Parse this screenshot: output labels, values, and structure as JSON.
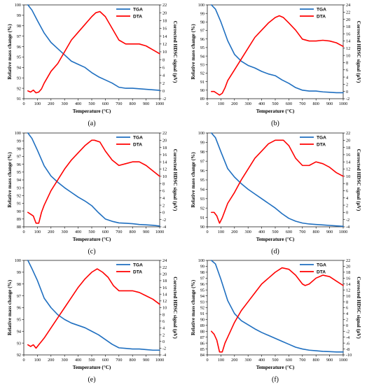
{
  "colors": {
    "tga": "#1F6FC0",
    "dta": "#FF0000",
    "axis": "#000000"
  },
  "chart_data": [
    {
      "type": "line",
      "caption": "(a)",
      "xlabel": "Temperature (°C)",
      "ylabel": "Relative mass change (%)",
      "y2label": "Corrected HDSC signal (µV)",
      "legend_position": "top-right",
      "xlim": [
        0,
        1000
      ],
      "xticks": [
        0,
        100,
        200,
        300,
        400,
        500,
        600,
        700,
        800,
        900,
        1000
      ],
      "ylim": [
        91,
        100
      ],
      "yticks": [
        91,
        92,
        93,
        94,
        95,
        96,
        97,
        98,
        99,
        100
      ],
      "y2lim": [
        -2,
        22
      ],
      "y2ticks": [
        -2,
        0,
        2,
        4,
        6,
        8,
        10,
        12,
        14,
        16,
        18,
        20,
        22
      ],
      "series": [
        {
          "name": "TGA",
          "axis": "left",
          "x": [
            30,
            60,
            100,
            150,
            200,
            250,
            300,
            350,
            400,
            450,
            500,
            550,
            600,
            650,
            700,
            750,
            800,
            850,
            900,
            950,
            1000
          ],
          "y": [
            100,
            99.5,
            98.5,
            97.3,
            96.4,
            95.8,
            95.2,
            94.6,
            94.3,
            94.0,
            93.5,
            93.1,
            92.8,
            92.5,
            92.1,
            92.0,
            92.0,
            91.95,
            91.9,
            91.85,
            91.8
          ]
        },
        {
          "name": "DTA",
          "axis": "right",
          "x": [
            30,
            50,
            70,
            90,
            110,
            130,
            150,
            200,
            250,
            300,
            350,
            400,
            450,
            500,
            530,
            560,
            600,
            650,
            700,
            750,
            800,
            850,
            900,
            950,
            1000
          ],
          "y": [
            0,
            -0.3,
            0.2,
            -0.5,
            -0.3,
            0.5,
            2,
            5,
            7,
            10,
            13,
            15,
            17,
            19,
            20,
            20.3,
            19,
            16,
            13,
            12,
            12,
            12,
            11.5,
            10.5,
            9.5
          ]
        }
      ]
    },
    {
      "type": "line",
      "caption": "(b)",
      "xlabel": "Temperature (°C)",
      "ylabel": "Relative mass change (%)",
      "y2label": "Corrected HDSC signal (µV)",
      "legend_position": "top-right",
      "xlim": [
        0,
        1000
      ],
      "xticks": [
        0,
        100,
        200,
        300,
        400,
        500,
        600,
        700,
        800,
        900,
        1000
      ],
      "ylim": [
        89,
        100
      ],
      "yticks": [
        89,
        90,
        91,
        92,
        93,
        94,
        95,
        96,
        97,
        98,
        99,
        100
      ],
      "y2lim": [
        -2,
        24
      ],
      "y2ticks": [
        -2,
        0,
        2,
        4,
        6,
        8,
        10,
        12,
        14,
        16,
        18,
        20,
        22,
        24
      ],
      "series": [
        {
          "name": "TGA",
          "axis": "left",
          "x": [
            30,
            60,
            100,
            150,
            200,
            250,
            300,
            350,
            400,
            450,
            500,
            550,
            600,
            650,
            700,
            750,
            800,
            850,
            900,
            950,
            1000
          ],
          "y": [
            100,
            99.5,
            98,
            95.8,
            94.2,
            93.4,
            92.9,
            92.6,
            92.2,
            91.9,
            91.7,
            91.2,
            90.8,
            90.3,
            90.0,
            89.9,
            89.9,
            89.8,
            89.75,
            89.7,
            89.7
          ]
        },
        {
          "name": "DTA",
          "axis": "right",
          "x": [
            30,
            50,
            70,
            90,
            110,
            130,
            150,
            200,
            250,
            300,
            350,
            400,
            450,
            500,
            530,
            560,
            600,
            650,
            700,
            750,
            800,
            850,
            900,
            950,
            1000
          ],
          "y": [
            0,
            0,
            -0.5,
            -1,
            -0.5,
            1,
            3,
            6,
            9,
            12,
            15,
            17,
            19,
            20.5,
            21,
            20.5,
            19,
            17,
            14.5,
            14,
            14,
            14.2,
            14,
            13.5,
            12.5
          ]
        }
      ]
    },
    {
      "type": "line",
      "caption": "(c)",
      "xlabel": "Temperature (°C)",
      "ylabel": "Relative mass change (%)",
      "y2label": "Corrected HDSC signal (µV)",
      "legend_position": "top-right",
      "xlim": [
        0,
        1000
      ],
      "xticks": [
        0,
        100,
        200,
        300,
        400,
        500,
        600,
        700,
        800,
        900,
        1000
      ],
      "ylim": [
        88,
        100
      ],
      "yticks": [
        88,
        89,
        90,
        91,
        92,
        93,
        94,
        95,
        96,
        97,
        98,
        99,
        100
      ],
      "y2lim": [
        -4,
        22
      ],
      "y2ticks": [
        -4,
        -2,
        0,
        2,
        4,
        6,
        8,
        10,
        12,
        14,
        16,
        18,
        20,
        22
      ],
      "series": [
        {
          "name": "TGA",
          "axis": "left",
          "x": [
            30,
            60,
            100,
            150,
            200,
            250,
            300,
            350,
            400,
            450,
            500,
            550,
            600,
            650,
            700,
            750,
            800,
            850,
            900,
            950,
            1000
          ],
          "y": [
            100,
            99.3,
            97.8,
            95.8,
            94.5,
            93.7,
            93.0,
            92.4,
            91.8,
            91.3,
            90.7,
            89.8,
            89.0,
            88.7,
            88.5,
            88.45,
            88.4,
            88.3,
            88.25,
            88.2,
            88.1
          ]
        },
        {
          "name": "DTA",
          "axis": "right",
          "x": [
            30,
            50,
            70,
            90,
            110,
            130,
            150,
            200,
            250,
            300,
            350,
            400,
            450,
            500,
            520,
            560,
            600,
            650,
            700,
            750,
            800,
            850,
            900,
            950,
            1000
          ],
          "y": [
            0,
            -0.5,
            -1,
            -3,
            -3,
            0,
            2,
            6,
            9,
            12,
            14.5,
            16.5,
            18.5,
            20,
            20,
            19.5,
            17,
            14.5,
            13,
            13.5,
            14,
            14,
            13,
            11.5,
            10
          ]
        }
      ]
    },
    {
      "type": "line",
      "caption": "(d)",
      "xlabel": "Temperature (°C)",
      "ylabel": "Relative mass change (%)",
      "y2label": "Corrected HDSC signal (µV)",
      "legend_position": "top-right",
      "xlim": [
        0,
        1000
      ],
      "xticks": [
        0,
        100,
        200,
        300,
        400,
        500,
        600,
        700,
        800,
        900,
        1000
      ],
      "ylim": [
        90,
        100
      ],
      "yticks": [
        90,
        91,
        92,
        93,
        94,
        95,
        96,
        97,
        98,
        99,
        100
      ],
      "y2lim": [
        -4,
        22
      ],
      "y2ticks": [
        -4,
        -2,
        0,
        2,
        4,
        6,
        8,
        10,
        12,
        14,
        16,
        18,
        20,
        22
      ],
      "series": [
        {
          "name": "TGA",
          "axis": "left",
          "x": [
            30,
            60,
            100,
            150,
            200,
            250,
            300,
            350,
            400,
            450,
            500,
            550,
            600,
            650,
            700,
            750,
            800,
            850,
            900,
            950,
            1000
          ],
          "y": [
            100,
            99.5,
            98,
            96.2,
            95.3,
            94.6,
            94.0,
            93.5,
            93.0,
            92.5,
            92.0,
            91.4,
            90.9,
            90.6,
            90.4,
            90.3,
            90.25,
            90.2,
            90.15,
            90.1,
            90.05
          ]
        },
        {
          "name": "DTA",
          "axis": "right",
          "x": [
            30,
            50,
            70,
            90,
            110,
            130,
            150,
            200,
            250,
            300,
            350,
            400,
            450,
            500,
            530,
            560,
            600,
            650,
            700,
            750,
            800,
            850,
            900,
            950,
            1000
          ],
          "y": [
            0,
            0,
            -1,
            -3,
            -1.5,
            0.5,
            2.5,
            5.5,
            9,
            12,
            15,
            17,
            19,
            20,
            20,
            20,
            18.5,
            15,
            13,
            13,
            14,
            13.5,
            12.5,
            11,
            10
          ]
        }
      ]
    },
    {
      "type": "line",
      "caption": "(e)",
      "xlabel": "Temperature (°C)",
      "ylabel": "Relative mass change (%)",
      "y2label": "Corrected HDSC signal (µV)",
      "legend_position": "top-right",
      "xlim": [
        0,
        1000
      ],
      "xticks": [
        0,
        100,
        200,
        300,
        400,
        500,
        600,
        700,
        800,
        900,
        1000
      ],
      "ylim": [
        92,
        100
      ],
      "yticks": [
        92,
        93,
        94,
        95,
        96,
        97,
        98,
        99,
        100
      ],
      "y2lim": [
        -4,
        24
      ],
      "y2ticks": [
        -4,
        -2,
        0,
        2,
        4,
        6,
        8,
        10,
        12,
        14,
        16,
        18,
        20,
        22,
        24
      ],
      "series": [
        {
          "name": "TGA",
          "axis": "left",
          "x": [
            30,
            60,
            100,
            150,
            200,
            250,
            300,
            350,
            400,
            450,
            500,
            550,
            600,
            650,
            700,
            750,
            800,
            850,
            900,
            950,
            1000
          ],
          "y": [
            100,
            99.3,
            98.3,
            96.8,
            96.0,
            95.4,
            95.0,
            94.7,
            94.5,
            94.3,
            94.0,
            93.7,
            93.3,
            92.9,
            92.6,
            92.55,
            92.5,
            92.5,
            92.45,
            92.4,
            92.4
          ]
        },
        {
          "name": "DTA",
          "axis": "right",
          "x": [
            30,
            50,
            70,
            90,
            110,
            130,
            150,
            200,
            250,
            300,
            350,
            400,
            450,
            500,
            540,
            580,
            620,
            660,
            700,
            750,
            800,
            850,
            900,
            950,
            1000
          ],
          "y": [
            -1,
            -1.5,
            -1,
            -2,
            -1,
            0,
            1,
            4,
            7,
            10,
            13,
            16,
            18.5,
            20.5,
            21.5,
            20.5,
            19,
            16.5,
            15,
            15,
            15,
            14.5,
            13.5,
            12.5,
            11
          ]
        }
      ]
    },
    {
      "type": "line",
      "caption": "(f)",
      "xlabel": "Temperature (°C)",
      "ylabel": "Relative mass change (%)",
      "y2label": "Corrected HDSC signal (µV)",
      "legend_position": "top-right",
      "xlim": [
        0,
        1000
      ],
      "xticks": [
        0,
        100,
        200,
        300,
        400,
        500,
        600,
        700,
        800,
        900,
        1000
      ],
      "ylim": [
        84,
        100
      ],
      "yticks": [
        84,
        85,
        86,
        87,
        88,
        89,
        90,
        91,
        92,
        93,
        94,
        95,
        96,
        97,
        98,
        99,
        100
      ],
      "y2lim": [
        -10,
        22
      ],
      "y2ticks": [
        -10,
        -8,
        -6,
        -4,
        -2,
        0,
        2,
        4,
        6,
        8,
        10,
        12,
        14,
        16,
        18,
        20,
        22
      ],
      "series": [
        {
          "name": "TGA",
          "axis": "left",
          "x": [
            30,
            60,
            100,
            150,
            200,
            250,
            300,
            350,
            400,
            450,
            500,
            550,
            600,
            650,
            700,
            750,
            800,
            850,
            900,
            950,
            1000
          ],
          "y": [
            100,
            99.4,
            96.8,
            93.2,
            91.0,
            89.8,
            89.1,
            88.4,
            87.8,
            87.3,
            86.8,
            86.3,
            85.8,
            85.3,
            85.0,
            84.8,
            84.7,
            84.6,
            84.55,
            84.5,
            84.5
          ]
        },
        {
          "name": "DTA",
          "axis": "right",
          "x": [
            30,
            50,
            70,
            90,
            110,
            130,
            150,
            200,
            250,
            300,
            350,
            400,
            450,
            500,
            550,
            600,
            650,
            700,
            720,
            750,
            800,
            850,
            900,
            950,
            1000
          ],
          "y": [
            -2,
            -3,
            -5,
            -9,
            -9,
            -6,
            -4,
            1,
            5,
            8,
            11,
            14,
            16,
            18,
            19.5,
            19,
            17,
            14,
            13.5,
            14,
            16,
            17,
            16.5,
            15,
            13.5
          ]
        }
      ]
    }
  ]
}
